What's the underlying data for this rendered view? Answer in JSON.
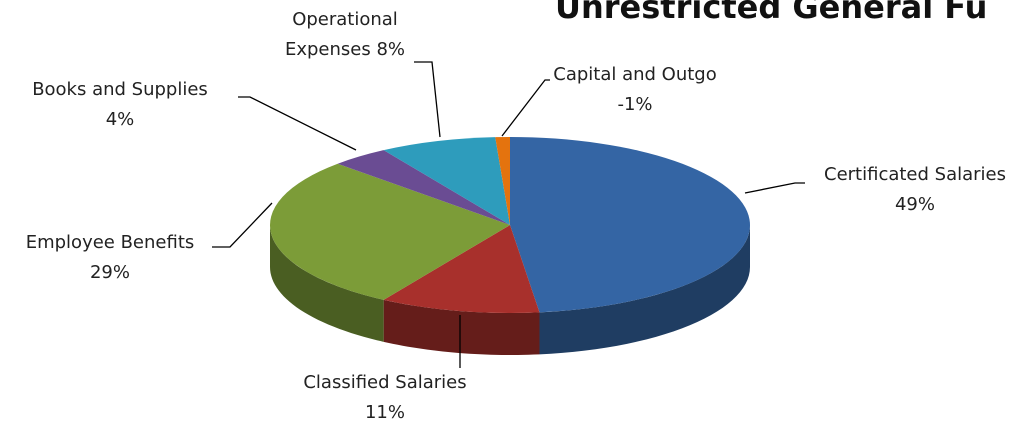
{
  "chart_data": {
    "type": "pie",
    "title": "Unrestricted General Fu",
    "categories": [
      "Certificated Salaries",
      "Classified Salaries",
      "Employee Benefits",
      "Books and Supplies",
      "Operational Expenses",
      "Capital and Outgo"
    ],
    "values": [
      49,
      11,
      29,
      4,
      8,
      -1
    ],
    "value_labels": [
      "49%",
      "11%",
      "29%",
      "4%",
      "8%",
      "-1%"
    ],
    "colors": [
      "#3465a4",
      "#a8302c",
      "#7c9c38",
      "#6a4c93",
      "#2e9cbc",
      "#e4730e"
    ]
  }
}
